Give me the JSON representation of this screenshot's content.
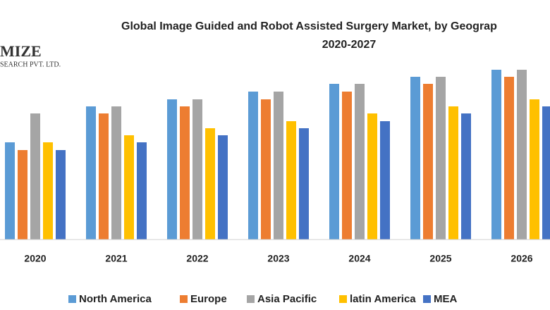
{
  "logo": {
    "name": "MIZE",
    "tagline": "SEARCH PVT. LTD."
  },
  "chart_data": {
    "type": "bar",
    "title": "Global Image Guided and Robot Assisted Surgery Market, by Geograp",
    "subtitle": "2020-2027",
    "categories": [
      "2020",
      "2021",
      "2022",
      "2023",
      "2024",
      "2025",
      "2026"
    ],
    "series": [
      {
        "name": "North America",
        "color": "#5b9bd5",
        "values": [
          138,
          189,
          199,
          210,
          221,
          231,
          241
        ]
      },
      {
        "name": "Europe",
        "color": "#ed7d31",
        "values": [
          127,
          179,
          189,
          199,
          210,
          221,
          231
        ]
      },
      {
        "name": "Asia Pacific",
        "color": "#a5a5a5",
        "values": [
          179,
          189,
          199,
          210,
          221,
          231,
          241
        ]
      },
      {
        "name": "latin America",
        "color": "#ffc000",
        "values": [
          138,
          148,
          158,
          168,
          179,
          189,
          199
        ]
      },
      {
        "name": "MEA",
        "color": "#4472c4",
        "values": [
          127,
          138,
          148,
          158,
          168,
          179,
          189
        ]
      }
    ],
    "ylim": [
      0,
      260
    ],
    "legend": "bottom"
  }
}
